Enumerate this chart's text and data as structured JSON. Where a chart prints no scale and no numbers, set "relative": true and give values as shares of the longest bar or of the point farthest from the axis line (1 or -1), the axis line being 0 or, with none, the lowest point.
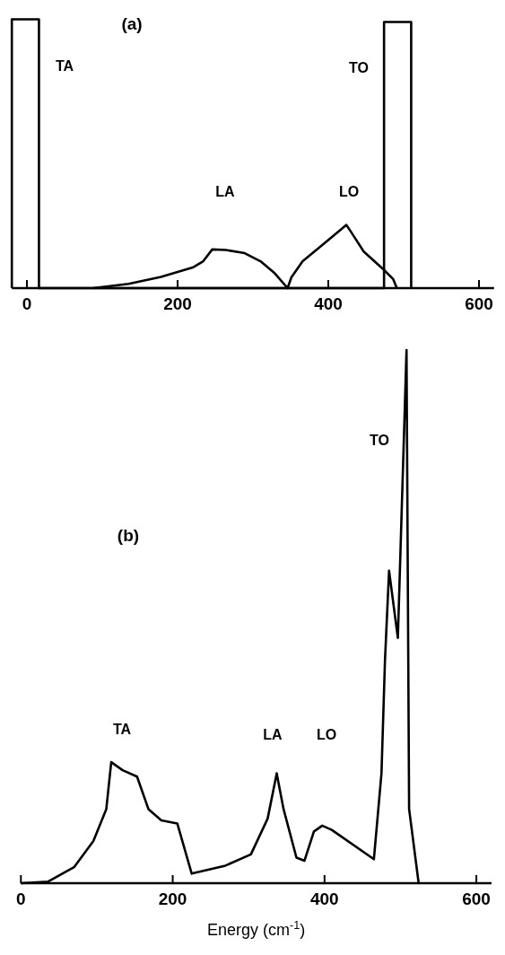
{
  "chart_data": [
    {
      "type": "line",
      "relative": true,
      "xlim": [
        -20,
        620
      ],
      "xticks": [
        0,
        200,
        400,
        600
      ],
      "series": [
        {
          "color": "#000000",
          "x": [
            -20,
            -20,
            16,
            16,
            474,
            474,
            510,
            510
          ],
          "values": [
            0,
            1,
            1,
            0,
            0,
            0.99,
            0.99,
            0
          ]
        },
        {
          "color": "#000000",
          "x": [
            88,
            135,
            178,
            221,
            234,
            246,
            264,
            289,
            310,
            328,
            346,
            351,
            366,
            392,
            424,
            430,
            447,
            473,
            486,
            491
          ],
          "values": [
            0,
            0.016,
            0.042,
            0.078,
            0.1,
            0.144,
            0.142,
            0.13,
            0.1,
            0.058,
            0,
            0.04,
            0.1,
            0.16,
            0.235,
            0.21,
            0.136,
            0.07,
            0.034,
            0
          ]
        }
      ],
      "annotations": [
        "(a)",
        "TA",
        "LA",
        "LO",
        "TO"
      ]
    },
    {
      "type": "line",
      "relative": true,
      "xlim": [
        0,
        620
      ],
      "xticks": [
        0,
        200,
        400,
        600
      ],
      "xlabel": "Energy (cm$^{-1}$)",
      "series": [
        {
          "color": "#000000",
          "x": [
            0,
            36,
            70,
            95.5,
            112.5,
            119,
            134,
            153,
            168,
            185,
            206,
            225,
            269.5,
            303,
            325,
            337,
            346,
            363,
            373.5,
            386,
            397,
            409.5,
            465,
            475,
            479.6,
            485,
            496.6,
            508,
            511.4,
            524
          ],
          "values": [
            0,
            0.003,
            0.03,
            0.079,
            0.139,
            0.227,
            0.212,
            0.2,
            0.139,
            0.118,
            0.112,
            0.018,
            0.033,
            0.054,
            0.121,
            0.206,
            0.139,
            0.048,
            0.042,
            0.097,
            0.108,
            0.1,
            0.045,
            0.206,
            0.417,
            0.586,
            0.46,
            1,
            0.139,
            0
          ]
        }
      ],
      "annotations": [
        "(b)",
        "TA",
        "LA",
        "LO",
        "TO"
      ]
    }
  ]
}
